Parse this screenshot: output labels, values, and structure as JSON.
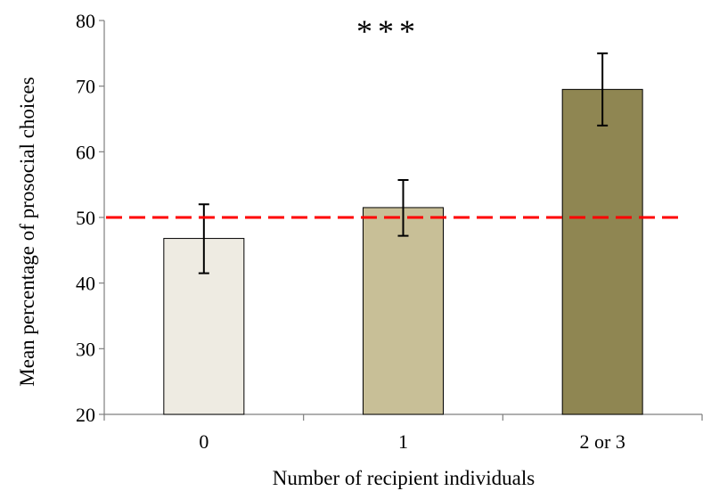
{
  "chart_data": {
    "type": "bar",
    "xlabel": "Number of recipient individuals",
    "ylabel": "Mean percentage of prosocial choices",
    "categories": [
      "0",
      "1",
      "2 or 3"
    ],
    "values": [
      46.8,
      51.5,
      69.5
    ],
    "error_low": [
      41.5,
      47.2,
      64.0
    ],
    "error_high": [
      52.0,
      55.7,
      75.0
    ],
    "bar_colors": [
      "#eeebe2",
      "#c8bf97",
      "#8f8652"
    ],
    "ylim": [
      20,
      80
    ],
    "yticks": [
      "20",
      "30",
      "40",
      "50",
      "60",
      "70",
      "80"
    ],
    "reference_line": {
      "value": 50,
      "color": "#ff0000",
      "style": "dashed"
    },
    "annotation": "***",
    "grid": false,
    "legend": "none"
  }
}
